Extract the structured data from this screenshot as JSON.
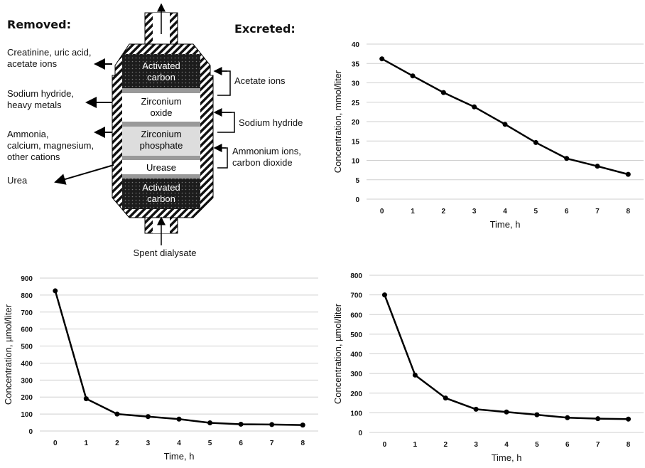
{
  "diagram": {
    "removed_heading": "Removed:",
    "excreted_heading": "Excreted:",
    "removed": [
      {
        "lines": [
          "Creatinine, uric acid,",
          "acetate ions"
        ]
      },
      {
        "lines": [
          "Sodium hydride,",
          "heavy metals"
        ]
      },
      {
        "lines": [
          "Ammonia,",
          "calcium, magnesium,",
          "other cations"
        ]
      },
      {
        "lines": [
          "Urea"
        ]
      }
    ],
    "layers": [
      {
        "lines": [
          "Activated",
          "carbon"
        ]
      },
      {
        "lines": [
          "Zirconium",
          "oxide"
        ]
      },
      {
        "lines": [
          "Zirconium",
          "phosphate"
        ]
      },
      {
        "lines": [
          "Urease"
        ]
      },
      {
        "lines": [
          "Activated",
          "carbon"
        ]
      }
    ],
    "excreted": [
      {
        "lines": [
          "Acetate ions"
        ]
      },
      {
        "lines": [
          "Sodium hydride"
        ]
      },
      {
        "lines": [
          "Ammonium ions,",
          "carbon dioxide"
        ]
      }
    ],
    "inlet": "Spent dialysate"
  },
  "chart_data": [
    {
      "type": "line",
      "x_label": "Time, h",
      "y_label": "Concentration, mmol/liter",
      "x": [
        0,
        1,
        2,
        3,
        4,
        5,
        6,
        7,
        8
      ],
      "values": [
        36.2,
        31.8,
        27.5,
        23.8,
        19.3,
        14.6,
        10.5,
        8.5,
        6.4
      ],
      "color": "#000000",
      "xlim": [
        -0.5,
        8.5
      ],
      "xticks": [
        0,
        1,
        2,
        3,
        4,
        5,
        6,
        7,
        8
      ],
      "ylim": [
        0,
        40
      ],
      "yticks": [
        0,
        5,
        10,
        15,
        20,
        25,
        30,
        35,
        40
      ],
      "grid": true
    },
    {
      "type": "line",
      "x_label": "Time, h",
      "y_label": "Concentration, µmol/liter",
      "x": [
        0,
        1,
        2,
        3,
        4,
        5,
        6,
        7,
        8
      ],
      "values": [
        825,
        190,
        100,
        85,
        70,
        48,
        40,
        38,
        35
      ],
      "color": "#000000",
      "xlim": [
        -0.5,
        8.5
      ],
      "xticks": [
        0,
        1,
        2,
        3,
        4,
        5,
        6,
        7,
        8
      ],
      "ylim": [
        0,
        900
      ],
      "yticks": [
        0,
        100,
        200,
        300,
        400,
        500,
        600,
        700,
        800,
        900
      ],
      "grid": true
    },
    {
      "type": "line",
      "x_label": "Time, h",
      "y_label": "Concentration, µmol/liter",
      "x": [
        0,
        1,
        2,
        3,
        4,
        5,
        6,
        7,
        8
      ],
      "values": [
        700,
        292,
        175,
        118,
        104,
        90,
        75,
        70,
        68
      ],
      "color": "#000000",
      "xlim": [
        -0.5,
        8.5
      ],
      "xticks": [
        0,
        1,
        2,
        3,
        4,
        5,
        6,
        7,
        8
      ],
      "ylim": [
        0,
        800
      ],
      "yticks": [
        0,
        100,
        200,
        300,
        400,
        500,
        600,
        700,
        800
      ],
      "grid": true
    }
  ]
}
